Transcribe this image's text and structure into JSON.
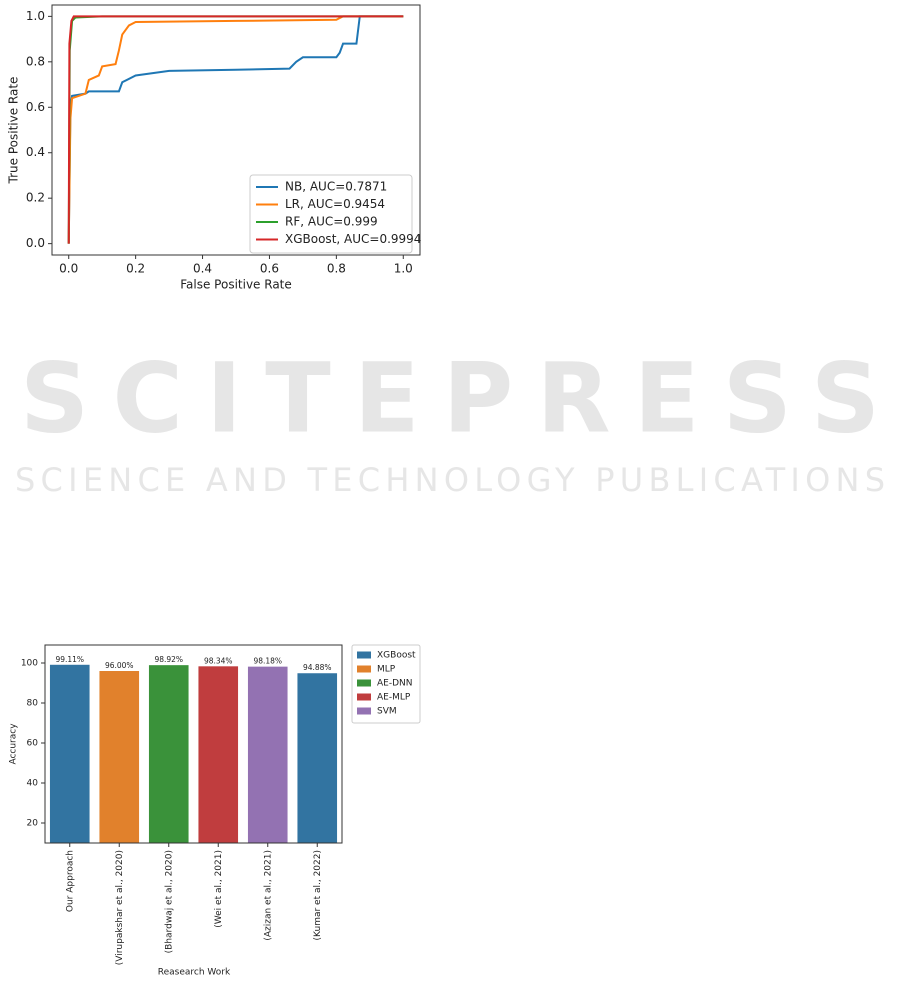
{
  "watermark": {
    "title": "SCITEPRESS",
    "subtitle": "SCIENCE AND TECHNOLOGY PUBLICATIONS"
  },
  "chart_data": [
    {
      "type": "line",
      "xlabel": "False Positive Rate",
      "ylabel": "True Positive Rate",
      "xlim": [
        -0.05,
        1.05
      ],
      "ylim": [
        -0.05,
        1.05
      ],
      "xticks": [
        {
          "value": 0,
          "label": "0.0"
        },
        0.2,
        0.4,
        0.6,
        0.8,
        {
          "value": 1,
          "label": "1.0"
        }
      ],
      "yticks": [
        {
          "value": 0,
          "label": "0.0"
        },
        0.2,
        0.4,
        0.6,
        0.8,
        {
          "value": 1,
          "label": "1.0"
        }
      ],
      "legend": "lower right",
      "series": [
        {
          "name": "NB, AUC=0.7871",
          "color": "#1f77b4",
          "x": [
            0,
            0.005,
            0.01,
            0.05,
            0.06,
            0.15,
            0.16,
            0.2,
            0.3,
            0.5,
            0.66,
            0.68,
            0.7,
            0.8,
            0.81,
            0.82,
            0.86,
            0.87,
            1
          ],
          "values": [
            0,
            0.6,
            0.65,
            0.66,
            0.67,
            0.67,
            0.71,
            0.74,
            0.76,
            0.765,
            0.77,
            0.8,
            0.82,
            0.82,
            0.84,
            0.88,
            0.88,
            1,
            1
          ]
        },
        {
          "name": "LR, AUC=0.9454",
          "color": "#ff7f0e",
          "x": [
            0,
            0.005,
            0.01,
            0.05,
            0.06,
            0.09,
            0.1,
            0.14,
            0.15,
            0.16,
            0.18,
            0.2,
            0.5,
            0.8,
            0.82,
            1
          ],
          "values": [
            0,
            0.55,
            0.64,
            0.66,
            0.72,
            0.74,
            0.78,
            0.79,
            0.85,
            0.92,
            0.96,
            0.975,
            0.98,
            0.985,
            1,
            1
          ]
        },
        {
          "name": "RF, AUC=0.999",
          "color": "#2ca02c",
          "x": [
            0,
            0.003,
            0.01,
            0.02,
            0.1,
            1
          ],
          "values": [
            0,
            0.85,
            0.98,
            0.995,
            1,
            1
          ]
        },
        {
          "name": "XGBoost, AUC=0.9994",
          "color": "#d62728",
          "x": [
            0,
            0.002,
            0.008,
            0.015,
            1
          ],
          "values": [
            0,
            0.88,
            0.98,
            1,
            1
          ]
        }
      ]
    },
    {
      "type": "bar",
      "xlabel": "Reasearch Work",
      "ylabel": "Accuracy",
      "ylim": [
        10,
        109
      ],
      "yticks": [
        20,
        40,
        60,
        80,
        100
      ],
      "categories": [
        "Our Approach",
        "(Virupakshar et al., 2020)",
        "(Bhardwaj et al., 2020)",
        "(Wei et al., 2021)",
        "(Azizan et al., 2021)",
        "(Kumar et al., 2022)"
      ],
      "values": [
        99.11,
        96.0,
        98.92,
        98.34,
        98.18,
        94.88
      ],
      "value_labels": [
        "99.11%",
        "96.00%",
        "98.92%",
        "98.34%",
        "98.18%",
        "94.88%"
      ],
      "colors": [
        "#3274a1",
        "#e1812c",
        "#3a923a",
        "#c03d3e",
        "#9372b2",
        "#3274a1"
      ],
      "legend_items": [
        {
          "name": "XGBoost",
          "color": "#3274a1"
        },
        {
          "name": "MLP",
          "color": "#e1812c"
        },
        {
          "name": "AE-DNN",
          "color": "#3a923a"
        },
        {
          "name": "AE-MLP",
          "color": "#c03d3e"
        },
        {
          "name": "SVM",
          "color": "#9372b2"
        }
      ]
    }
  ]
}
